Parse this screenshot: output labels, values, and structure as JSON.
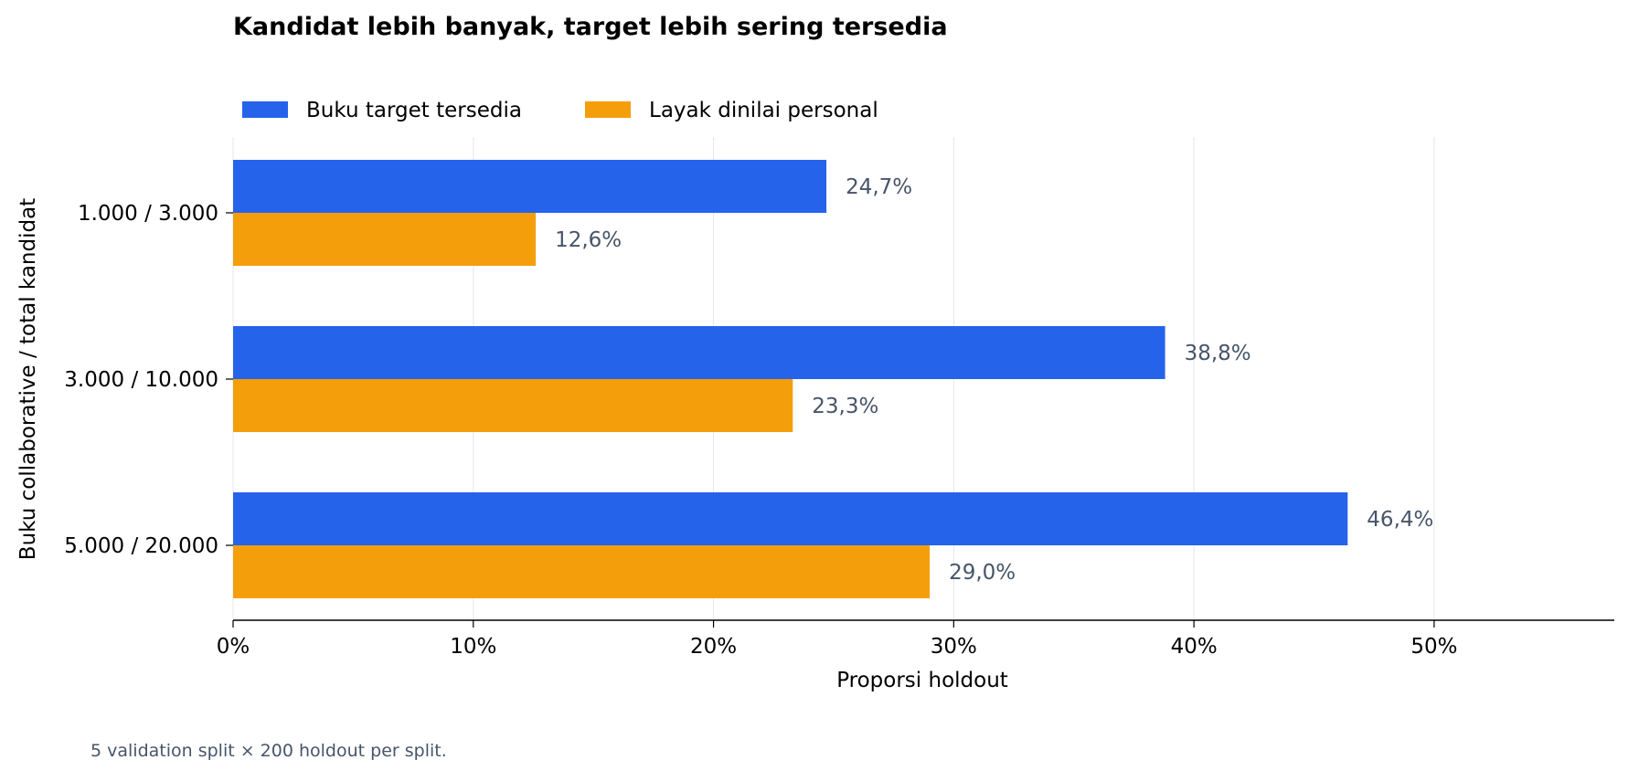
{
  "chart_data": {
    "type": "bar",
    "orientation": "horizontal",
    "title": "Kandidat lebih banyak, target lebih sering tersedia",
    "xlabel": "Proporsi holdout",
    "ylabel": "Buku collaborative / total kandidat",
    "categories": [
      "1.000 / 3.000",
      "3.000 / 10.000",
      "5.000 / 20.000"
    ],
    "series": [
      {
        "name": "Buku target tersedia",
        "values": [
          24.7,
          38.8,
          46.4
        ],
        "labels": [
          "24,7%",
          "38,8%",
          "46,4%"
        ],
        "color": "#2563eb"
      },
      {
        "name": "Layak dinilai personal",
        "values": [
          12.6,
          23.3,
          29.0
        ],
        "labels": [
          "12,6%",
          "23,3%",
          "29,0%"
        ],
        "color": "#f59e0b"
      }
    ],
    "xlim": [
      0,
      57.5
    ],
    "xticks": [
      0,
      10,
      20,
      30,
      40,
      50
    ],
    "xtick_labels": [
      "0%",
      "10%",
      "20%",
      "30%",
      "40%",
      "50%"
    ],
    "grid": "vertical",
    "legend": "top-left",
    "label_color": "#475569",
    "footnote": "5 validation split × 200 holdout per split."
  }
}
